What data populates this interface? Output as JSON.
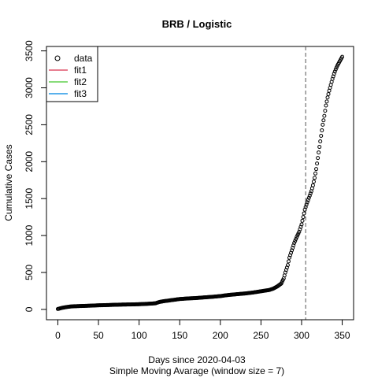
{
  "chart_data": {
    "type": "scatter",
    "title": "BRB / Logistic",
    "xlabel": "Days since 2020-04-03",
    "xlabel2": "Simple Moving Avarage (window size = 7)",
    "ylabel": "Cumulative Cases",
    "xlim": [
      -14,
      364
    ],
    "ylim": [
      -140,
      3560
    ],
    "xticks": [
      0,
      50,
      100,
      150,
      200,
      250,
      300,
      350
    ],
    "yticks": [
      0,
      500,
      1000,
      1500,
      2000,
      2500,
      3000,
      3500
    ],
    "vline_x": 305,
    "vline_style": "dashed",
    "legend_position": "top-left",
    "legend": [
      {
        "label": "data",
        "kind": "point",
        "color": "#000000"
      },
      {
        "label": "fit1",
        "kind": "line",
        "color": "#DF536B"
      },
      {
        "label": "fit2",
        "kind": "line",
        "color": "#61D04F"
      },
      {
        "label": "fit3",
        "kind": "line",
        "color": "#2297E6"
      }
    ],
    "series": [
      {
        "name": "data",
        "marker": "open-circle",
        "points": [
          [
            0,
            5
          ],
          [
            5,
            20
          ],
          [
            10,
            30
          ],
          [
            15,
            38
          ],
          [
            20,
            42
          ],
          [
            30,
            46
          ],
          [
            40,
            50
          ],
          [
            50,
            55
          ],
          [
            60,
            58
          ],
          [
            70,
            62
          ],
          [
            80,
            65
          ],
          [
            90,
            67
          ],
          [
            100,
            70
          ],
          [
            110,
            75
          ],
          [
            120,
            82
          ],
          [
            125,
            100
          ],
          [
            130,
            110
          ],
          [
            140,
            125
          ],
          [
            150,
            140
          ],
          [
            160,
            148
          ],
          [
            170,
            153
          ],
          [
            180,
            162
          ],
          [
            190,
            170
          ],
          [
            200,
            180
          ],
          [
            210,
            195
          ],
          [
            220,
            205
          ],
          [
            230,
            215
          ],
          [
            240,
            228
          ],
          [
            250,
            245
          ],
          [
            260,
            262
          ],
          [
            265,
            280
          ],
          [
            270,
            310
          ],
          [
            275,
            350
          ],
          [
            278,
            420
          ],
          [
            280,
            500
          ],
          [
            283,
            600
          ],
          [
            285,
            700
          ],
          [
            288,
            800
          ],
          [
            291,
            900
          ],
          [
            294,
            980
          ],
          [
            297,
            1050
          ],
          [
            300,
            1150
          ],
          [
            302,
            1250
          ],
          [
            304,
            1350
          ],
          [
            306,
            1420
          ],
          [
            308,
            1480
          ],
          [
            310,
            1540
          ],
          [
            312,
            1600
          ],
          [
            314,
            1680
          ],
          [
            316,
            1780
          ],
          [
            318,
            1900
          ],
          [
            320,
            2050
          ],
          [
            322,
            2200
          ],
          [
            324,
            2350
          ],
          [
            326,
            2500
          ],
          [
            328,
            2620
          ],
          [
            330,
            2760
          ],
          [
            332,
            2870
          ],
          [
            334,
            2960
          ],
          [
            336,
            3040
          ],
          [
            338,
            3120
          ],
          [
            340,
            3190
          ],
          [
            342,
            3250
          ],
          [
            344,
            3300
          ],
          [
            346,
            3340
          ],
          [
            348,
            3380
          ],
          [
            350,
            3420
          ]
        ]
      }
    ]
  }
}
